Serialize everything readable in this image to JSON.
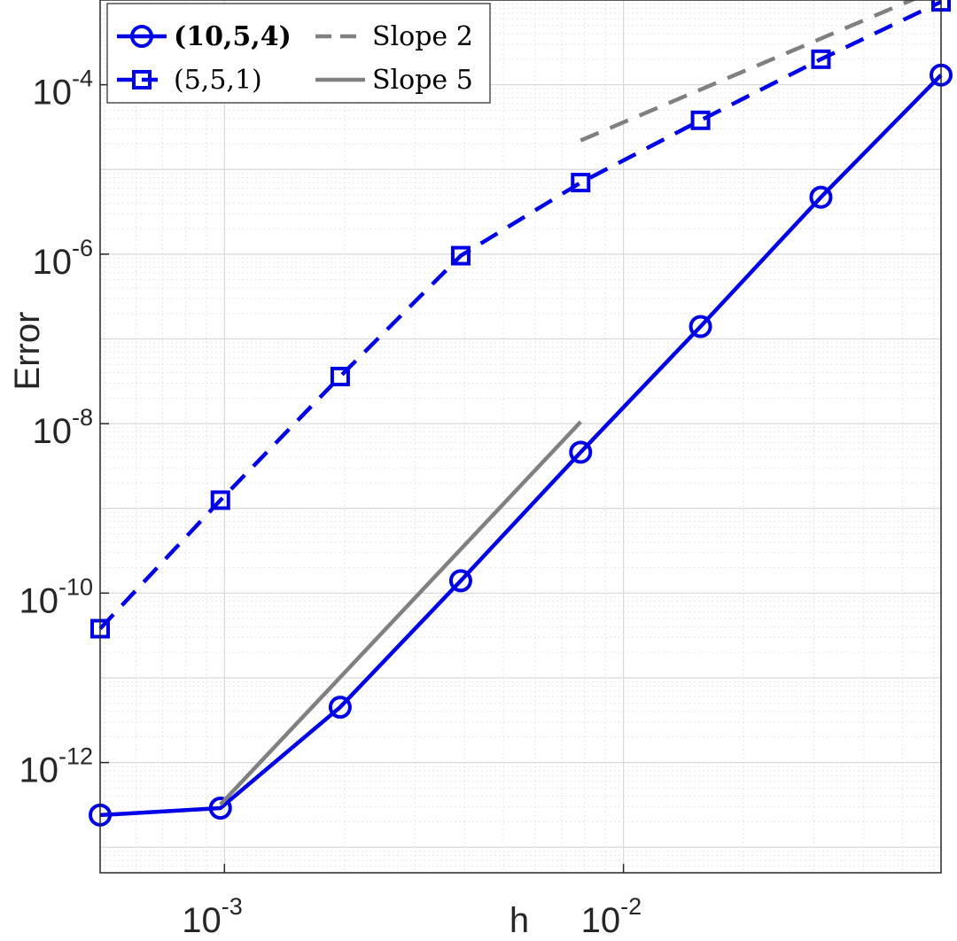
{
  "chart_data": {
    "type": "line",
    "title": "",
    "xlabel": "h",
    "ylabel": "Error",
    "xscale": "log",
    "yscale": "log",
    "xlim": [
      0.000488,
      0.0625
    ],
    "ylim": [
      5e-14,
      0.001
    ],
    "grid": true,
    "minor_grid": true,
    "legend_position": "top-left",
    "x_ticks": [
      {
        "value": 0.001,
        "base": "10",
        "exp": "-3"
      },
      {
        "value": 0.01,
        "base": "10",
        "exp": "-2"
      }
    ],
    "y_ticks": [
      {
        "value": 1e-12,
        "base": "10",
        "exp": "-12"
      },
      {
        "value": 1e-10,
        "base": "10",
        "exp": "-10"
      },
      {
        "value": 1e-08,
        "base": "10",
        "exp": "-8"
      },
      {
        "value": 1e-06,
        "base": "10",
        "exp": "-6"
      },
      {
        "value": 0.0001,
        "base": "10",
        "exp": "-4"
      }
    ],
    "series": [
      {
        "name": "(10,5,4)",
        "style": "solid",
        "marker": "circle",
        "color": "#0000e6",
        "bold_label": true,
        "x": [
          0.000488,
          0.000977,
          0.00195,
          0.00391,
          0.00781,
          0.0156,
          0.03125,
          0.0625
        ],
        "y": [
          2.4e-13,
          2.9e-13,
          4.5e-12,
          1.4e-10,
          4.6e-09,
          1.4e-07,
          4.7e-06,
          0.00013
        ]
      },
      {
        "name": "(5,5,1)",
        "style": "dashed",
        "marker": "square",
        "color": "#0000e6",
        "bold_label": false,
        "x": [
          0.000488,
          0.000977,
          0.00195,
          0.00391,
          0.00781,
          0.0156,
          0.03125,
          0.0625
        ],
        "y": [
          3.8e-11,
          1.25e-09,
          3.6e-08,
          9.6e-07,
          7e-06,
          3.8e-05,
          0.0002,
          0.00095
        ]
      },
      {
        "name": "Slope 2",
        "style": "dashed",
        "marker": "none",
        "color": "#808080",
        "bold_label": false,
        "x": [
          0.00781,
          0.0625
        ],
        "y": [
          2.2e-05,
          0.0014
        ]
      },
      {
        "name": "Slope 5",
        "style": "solid",
        "marker": "none",
        "color": "#808080",
        "bold_label": false,
        "x": [
          0.000977,
          0.00781
        ],
        "y": [
          3.2e-13,
          1.05e-08
        ]
      }
    ]
  }
}
